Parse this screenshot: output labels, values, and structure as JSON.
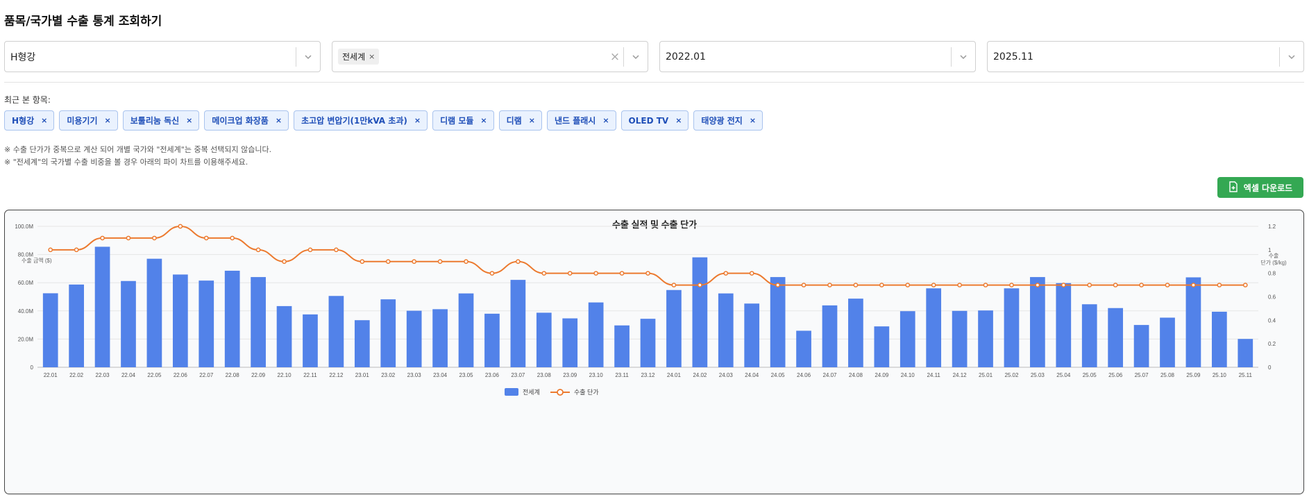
{
  "page": {
    "title": "품목/국가별 수출 통계 조회하기"
  },
  "filters": {
    "item": {
      "value": "H형강"
    },
    "country": {
      "tag": "전세계",
      "tag_remove": "×",
      "clear": "×"
    },
    "start": {
      "value": "2022.01"
    },
    "end": {
      "value": "2025.11"
    }
  },
  "recent": {
    "label": "최근 본 항목:",
    "items": [
      {
        "label": "H형강",
        "remove": "×"
      },
      {
        "label": "미용기기",
        "remove": "×"
      },
      {
        "label": "보툴리눔 독신",
        "remove": "×"
      },
      {
        "label": "메이크업 화장품",
        "remove": "×"
      },
      {
        "label": "초고압 변압기(1만kVA 초과)",
        "remove": "×"
      },
      {
        "label": "디램 모듈",
        "remove": "×"
      },
      {
        "label": "디램",
        "remove": "×"
      },
      {
        "label": "낸드 플래시",
        "remove": "×"
      },
      {
        "label": "OLED TV",
        "remove": "×"
      },
      {
        "label": "태양광 전지",
        "remove": "×"
      }
    ]
  },
  "notes": [
    "※ 수출 단가가 중복으로 계산 되어 개별 국가와 \"전세계\"는 중복 선택되지 않습니다.",
    "※ \"전세계\"의 국가별 수출 비중을 볼 경우 아래의 파이 차트를 이용해주세요."
  ],
  "actions": {
    "excel_label": "엑셀 다운로드"
  },
  "colors": {
    "bar": "#5282e9",
    "line": "#ec7a2f",
    "excel": "#34a853",
    "chip_text": "#1f4fb8"
  },
  "icons": {
    "dropdown": "chevron-down-icon",
    "excel": "file-plus-icon"
  },
  "chart_data": {
    "type": "bar",
    "title": "수출 실적 및 수출 단가",
    "ylabel_left": "수출 금액 ($)",
    "ylabel_right": "수출 단가 ($/kg)",
    "ylim_left": [
      0,
      100000000
    ],
    "ylim_right": [
      0,
      1.2
    ],
    "yticks_left": [
      "0",
      "20.0M",
      "40.0M",
      "60.0M",
      "80.0M",
      "100.0M"
    ],
    "yticks_right": [
      "0",
      "0.2",
      "0.4",
      "0.6",
      "0.8",
      "1",
      "1.2"
    ],
    "grid": true,
    "legend_position": "bottom",
    "categories": [
      "22.01",
      "22.02",
      "22.03",
      "22.04",
      "22.05",
      "22.06",
      "22.07",
      "22.08",
      "22.09",
      "22.10",
      "22.11",
      "22.12",
      "23.01",
      "23.02",
      "23.03",
      "23.04",
      "23.05",
      "23.06",
      "23.07",
      "23.08",
      "23.09",
      "23.10",
      "23.11",
      "23.12",
      "24.01",
      "24.02",
      "24.03",
      "24.04",
      "24.05",
      "24.06",
      "24.07",
      "24.08",
      "24.09",
      "24.10",
      "24.11",
      "24.12",
      "25.01",
      "25.02",
      "25.03",
      "25.04",
      "25.05",
      "25.06",
      "25.07",
      "25.08",
      "25.09",
      "25.10",
      "25.11"
    ],
    "series": [
      {
        "name": "전세계",
        "type": "bar",
        "axis": "left",
        "values": [
          52500000,
          58700000,
          85500000,
          61200000,
          77000000,
          65800000,
          61500000,
          68500000,
          64000000,
          43400000,
          37500000,
          50600000,
          33400000,
          48200000,
          40100000,
          41200000,
          52400000,
          38000000,
          62000000,
          38700000,
          34700000,
          46000000,
          29700000,
          34400000,
          54800000,
          78000000,
          52400000,
          45200000,
          64000000,
          25900000,
          43900000,
          48700000,
          29000000,
          39800000,
          56000000,
          40000000,
          40300000,
          56000000,
          64000000,
          59700000,
          44700000,
          42000000,
          30000000,
          35200000,
          63800000,
          39400000,
          20100000
        ]
      },
      {
        "name": "수출 단가",
        "type": "line",
        "axis": "right",
        "values": [
          1.0,
          1.0,
          1.1,
          1.1,
          1.1,
          1.2,
          1.1,
          1.1,
          1.0,
          0.9,
          1.0,
          1.0,
          0.9,
          0.9,
          0.9,
          0.9,
          0.9,
          0.8,
          0.9,
          0.8,
          0.8,
          0.8,
          0.8,
          0.8,
          0.7,
          0.7,
          0.8,
          0.8,
          0.7,
          0.7,
          0.7,
          0.7,
          0.7,
          0.7,
          0.7,
          0.7,
          0.7,
          0.7,
          0.7,
          0.7,
          0.7,
          0.7,
          0.7,
          0.7,
          0.7,
          0.7,
          0.7
        ]
      }
    ]
  }
}
